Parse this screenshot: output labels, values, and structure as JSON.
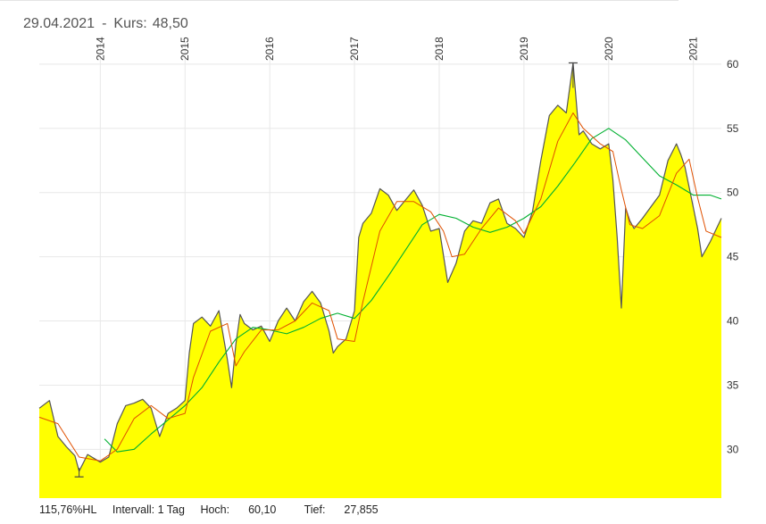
{
  "header": {
    "date": "29.04.2021",
    "separator": "-",
    "kurs_label": "Kurs:",
    "kurs_value": "48,50"
  },
  "footer": {
    "range": "115,76%HL",
    "interval": "Intervall: 1 Tag",
    "high_label": "Hoch:",
    "high_value": "60,10",
    "low_label": "Tief:",
    "low_value": "27,855"
  },
  "chart_data": {
    "type": "area",
    "x_tick_labels": [
      "2014",
      "2015",
      "2016",
      "2017",
      "2018",
      "2019",
      "2020",
      "2021"
    ],
    "x_ticks": [
      2014.0,
      2015.0,
      2016.0,
      2017.0,
      2018.0,
      2019.0,
      2020.0,
      2021.0
    ],
    "xlim": [
      2013.28,
      2021.33
    ],
    "y_tick_labels": [
      "30",
      "35",
      "40",
      "45",
      "50",
      "55",
      "60"
    ],
    "y_ticks": [
      30,
      35,
      40,
      45,
      50,
      55,
      60
    ],
    "ylim": [
      26.2,
      61.8
    ],
    "grid": true,
    "colors": {
      "fill": "#ffff00",
      "price": "#555555",
      "ma_short": "#e05000",
      "ma_long": "#00b030",
      "grid": "#e8e8e8"
    },
    "high_marker": {
      "x": 2019.58,
      "y": 60.1
    },
    "low_marker": {
      "x": 2013.75,
      "y": 27.855
    },
    "series": [
      {
        "role": "price",
        "x": [
          2013.28,
          2013.4,
          2013.5,
          2013.6,
          2013.7,
          2013.75,
          2013.85,
          2014.0,
          2014.1,
          2014.2,
          2014.3,
          2014.4,
          2014.5,
          2014.6,
          2014.7,
          2014.8,
          2014.9,
          2015.0,
          2015.05,
          2015.1,
          2015.2,
          2015.3,
          2015.4,
          2015.5,
          2015.55,
          2015.6,
          2015.65,
          2015.7,
          2015.8,
          2015.9,
          2016.0,
          2016.1,
          2016.2,
          2016.3,
          2016.4,
          2016.5,
          2016.6,
          2016.7,
          2016.75,
          2016.8,
          2016.9,
          2017.0,
          2017.05,
          2017.1,
          2017.2,
          2017.3,
          2017.4,
          2017.5,
          2017.6,
          2017.7,
          2017.8,
          2017.9,
          2018.0,
          2018.1,
          2018.2,
          2018.3,
          2018.4,
          2018.5,
          2018.6,
          2018.7,
          2018.8,
          2018.9,
          2019.0,
          2019.1,
          2019.2,
          2019.3,
          2019.4,
          2019.5,
          2019.58,
          2019.65,
          2019.7,
          2019.8,
          2019.9,
          2020.0,
          2020.05,
          2020.1,
          2020.15,
          2020.2,
          2020.25,
          2020.3,
          2020.4,
          2020.5,
          2020.6,
          2020.7,
          2020.8,
          2020.85,
          2020.9,
          2021.0,
          2021.05,
          2021.1,
          2021.2,
          2021.33
        ],
        "y": [
          33.2,
          33.8,
          31.0,
          30.2,
          29.5,
          28.3,
          29.6,
          29.0,
          29.4,
          32.0,
          33.4,
          33.6,
          33.9,
          33.2,
          31.0,
          32.8,
          33.2,
          33.8,
          37.5,
          39.8,
          40.3,
          39.6,
          40.8,
          37.0,
          34.8,
          38.2,
          40.5,
          39.8,
          39.3,
          39.6,
          38.4,
          40.0,
          41.0,
          40.0,
          41.5,
          42.3,
          41.4,
          39.2,
          37.5,
          38.0,
          38.6,
          40.8,
          46.5,
          47.6,
          48.4,
          50.3,
          49.8,
          48.6,
          49.4,
          50.2,
          49.0,
          47.0,
          47.2,
          43.0,
          44.5,
          47.0,
          47.8,
          47.6,
          49.2,
          49.5,
          47.6,
          47.2,
          46.5,
          48.5,
          52.5,
          56.0,
          56.8,
          56.2,
          60.1,
          54.5,
          54.8,
          53.8,
          53.4,
          53.8,
          51.0,
          46.5,
          41.0,
          48.8,
          47.8,
          47.2,
          48.0,
          48.9,
          49.8,
          52.5,
          53.8,
          53.0,
          52.0,
          48.8,
          47.2,
          45.0,
          46.2,
          48.0
        ]
      },
      {
        "role": "ma_short",
        "x": [
          2013.28,
          2013.5,
          2013.75,
          2014.0,
          2014.2,
          2014.4,
          2014.6,
          2014.8,
          2015.0,
          2015.1,
          2015.3,
          2015.5,
          2015.6,
          2015.7,
          2015.9,
          2016.1,
          2016.3,
          2016.5,
          2016.7,
          2016.8,
          2017.0,
          2017.1,
          2017.3,
          2017.5,
          2017.7,
          2017.9,
          2018.05,
          2018.15,
          2018.3,
          2018.5,
          2018.7,
          2018.9,
          2019.0,
          2019.2,
          2019.4,
          2019.58,
          2019.7,
          2019.9,
          2020.05,
          2020.15,
          2020.25,
          2020.4,
          2020.6,
          2020.8,
          2020.95,
          2021.05,
          2021.15,
          2021.33
        ],
        "y": [
          32.5,
          32.0,
          29.4,
          29.1,
          30.0,
          32.4,
          33.4,
          32.4,
          32.8,
          35.6,
          39.2,
          39.8,
          36.5,
          37.6,
          39.3,
          39.3,
          40.0,
          41.4,
          40.8,
          38.6,
          38.4,
          41.5,
          47.0,
          49.3,
          49.3,
          48.5,
          47.0,
          45.0,
          45.2,
          47.2,
          48.8,
          47.8,
          46.8,
          49.5,
          54.0,
          56.2,
          55.0,
          53.8,
          53.2,
          50.2,
          47.5,
          47.2,
          48.2,
          51.5,
          52.6,
          49.6,
          47.0,
          46.5
        ]
      },
      {
        "role": "ma_long",
        "x": [
          2014.05,
          2014.2,
          2014.4,
          2014.6,
          2014.8,
          2015.0,
          2015.2,
          2015.4,
          2015.6,
          2015.8,
          2016.0,
          2016.2,
          2016.4,
          2016.6,
          2016.8,
          2017.0,
          2017.2,
          2017.4,
          2017.6,
          2017.8,
          2018.0,
          2018.2,
          2018.4,
          2018.6,
          2018.8,
          2019.0,
          2019.2,
          2019.4,
          2019.6,
          2019.8,
          2020.0,
          2020.2,
          2020.4,
          2020.6,
          2020.8,
          2021.0,
          2021.2,
          2021.33
        ],
        "y": [
          30.8,
          29.8,
          30.0,
          31.2,
          32.3,
          33.4,
          34.8,
          36.8,
          38.6,
          39.5,
          39.3,
          39.0,
          39.5,
          40.2,
          40.6,
          40.2,
          41.6,
          43.5,
          45.5,
          47.5,
          48.3,
          48.0,
          47.3,
          46.9,
          47.3,
          48.0,
          48.9,
          50.5,
          52.3,
          54.2,
          55.0,
          54.1,
          52.7,
          51.3,
          50.6,
          49.8,
          49.8,
          49.5
        ]
      }
    ]
  }
}
